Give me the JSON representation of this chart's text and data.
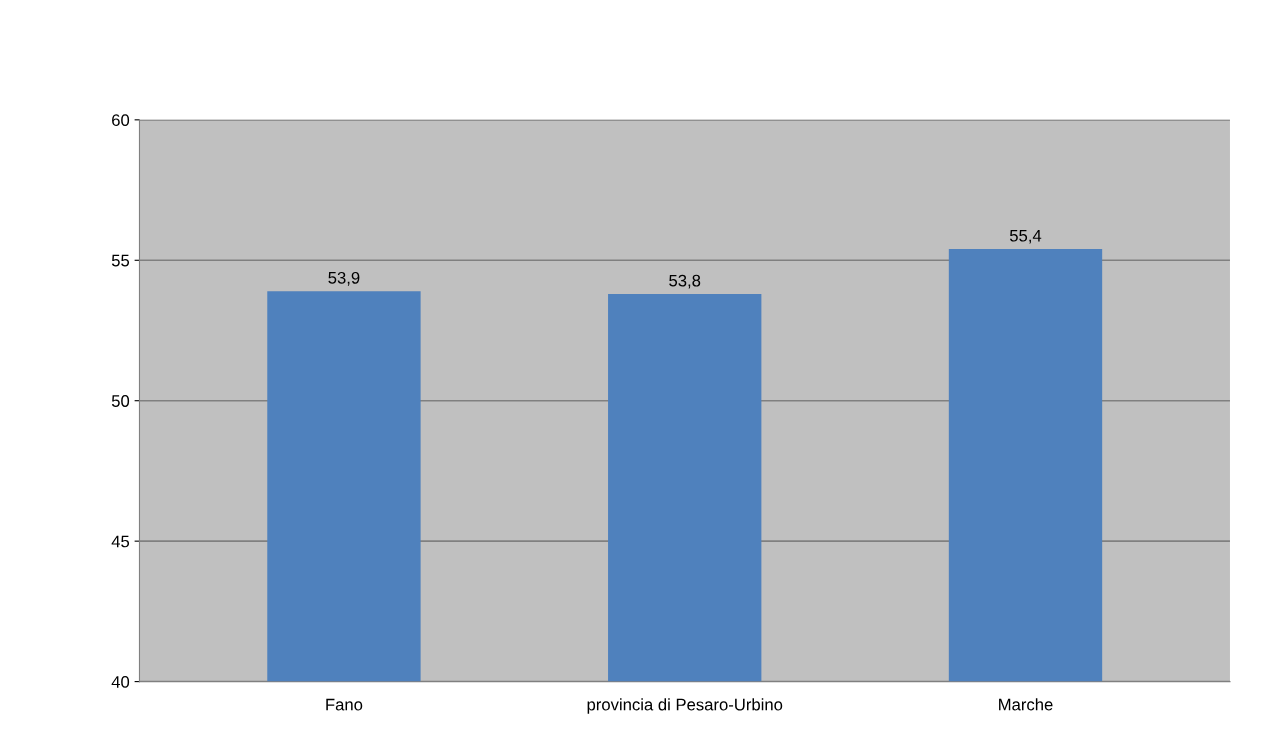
{
  "chart_data": {
    "type": "bar",
    "categories": [
      "Fano",
      "provincia di Pesaro-Urbino",
      "Marche"
    ],
    "values": [
      53.9,
      53.8,
      55.4
    ],
    "value_labels": [
      "53,9",
      "53,8",
      "55,4"
    ],
    "color": "#4f81bd",
    "ylim": [
      40,
      60
    ],
    "yticks": [
      40,
      45,
      50,
      55,
      60
    ],
    "grid": "y"
  }
}
